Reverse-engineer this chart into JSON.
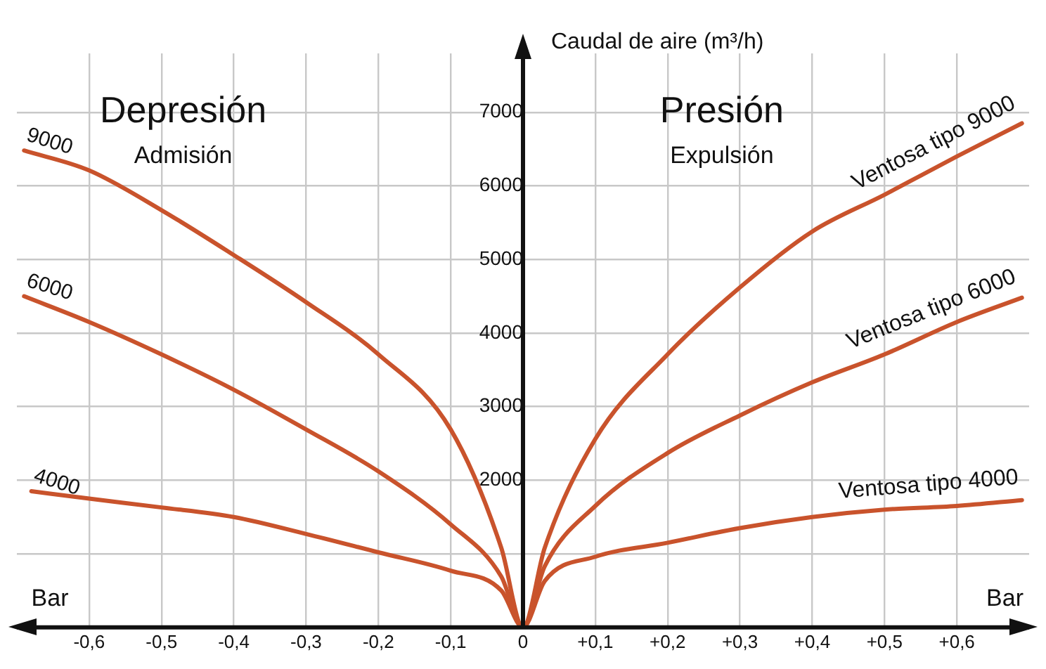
{
  "chart_data": {
    "type": "line",
    "ylabel": "Caudal de aire (m³/h)",
    "xlabel": "Bar",
    "annotations": [
      "Depresión",
      "Admisión",
      "Presión",
      "Expulsión",
      "Bar",
      "9000",
      "6000",
      "4000"
    ],
    "xlim": [
      -0.7,
      0.7
    ],
    "ylim": [
      0,
      7800
    ],
    "xticks": [
      {
        "value": -0.6,
        "label": "-0,6"
      },
      {
        "value": -0.5,
        "label": "-0,5"
      },
      {
        "value": -0.4,
        "label": "-0,4"
      },
      {
        "value": -0.3,
        "label": "-0,3"
      },
      {
        "value": -0.2,
        "label": "-0,2"
      },
      {
        "value": -0.1,
        "label": "-0,1"
      },
      0,
      {
        "value": 0.1,
        "label": "+0,1"
      },
      {
        "value": 0.2,
        "label": "+0,2"
      },
      {
        "value": 0.3,
        "label": "+0,3"
      },
      {
        "value": 0.4,
        "label": "+0,4"
      },
      {
        "value": 0.5,
        "label": "+0,5"
      },
      {
        "value": 0.6,
        "label": "+0,6"
      }
    ],
    "yticks": [
      {
        "value": 1000,
        "label": null
      },
      2000,
      3000,
      4000,
      5000,
      6000,
      7000
    ],
    "grid": true,
    "marker": "none",
    "line_style": "solid",
    "legend": false,
    "series": [
      {
        "name": "Ventosa tipo 9000",
        "color": "#c9532c",
        "x": [
          -0.69,
          -0.6,
          -0.5,
          -0.4,
          -0.3,
          -0.2,
          -0.1,
          -0.03,
          0,
          0.03,
          0.1,
          0.2,
          0.3,
          0.4,
          0.5,
          0.6,
          0.69
        ],
        "values": [
          6480,
          6210,
          5670,
          5060,
          4420,
          3710,
          2690,
          1080,
          0,
          1080,
          2560,
          3710,
          4620,
          5380,
          5880,
          6400,
          6850
        ]
      },
      {
        "name": "Ventosa tipo 6000",
        "color": "#c9532c",
        "x": [
          -0.69,
          -0.6,
          -0.5,
          -0.4,
          -0.3,
          -0.2,
          -0.1,
          -0.03,
          0,
          0.03,
          0.1,
          0.2,
          0.3,
          0.4,
          0.5,
          0.6,
          0.69
        ],
        "values": [
          4500,
          4150,
          3710,
          3230,
          2690,
          2120,
          1400,
          690,
          0,
          830,
          1650,
          2370,
          2880,
          3330,
          3710,
          4150,
          4480
        ]
      },
      {
        "name": "Ventosa tipo 4000",
        "color": "#c9532c",
        "x": [
          -0.68,
          -0.6,
          -0.5,
          -0.4,
          -0.3,
          -0.2,
          -0.1,
          -0.03,
          0,
          0.03,
          0.1,
          0.2,
          0.3,
          0.4,
          0.5,
          0.6,
          0.69
        ],
        "values": [
          1850,
          1750,
          1630,
          1500,
          1270,
          1020,
          770,
          500,
          0,
          630,
          960,
          1150,
          1350,
          1500,
          1600,
          1650,
          1730
        ]
      }
    ]
  }
}
